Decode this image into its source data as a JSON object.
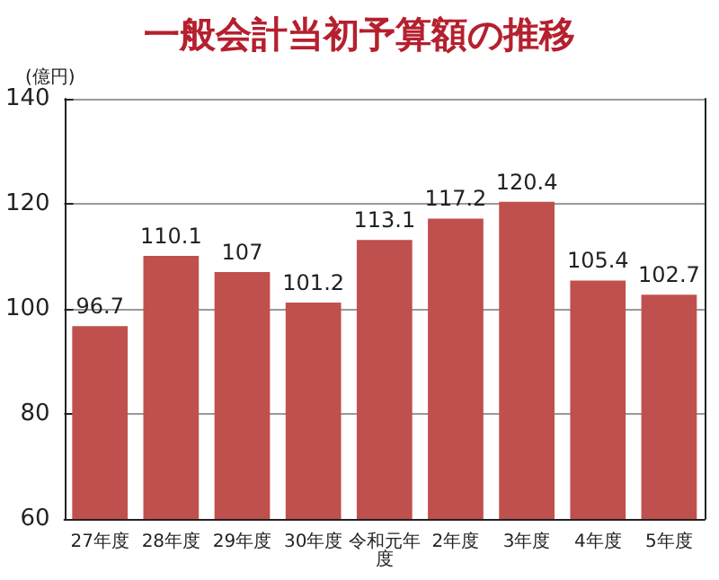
{
  "chart_data": {
    "type": "bar",
    "title": "一般会計当初予算額の推移",
    "ylabel": "(億円)",
    "categories": [
      "27年度",
      "28年度",
      "29年度",
      "30年度",
      "令和元年度",
      "2年度",
      "3年度",
      "4年度",
      "5年度"
    ],
    "values": [
      96.7,
      110.1,
      107,
      101.2,
      113.1,
      117.2,
      120.4,
      105.4,
      102.7
    ],
    "color": "#c0504d",
    "ylim": [
      60,
      140
    ],
    "yticks": [
      60,
      80,
      100,
      120,
      140
    ],
    "grid": "y",
    "data_labels": true
  }
}
